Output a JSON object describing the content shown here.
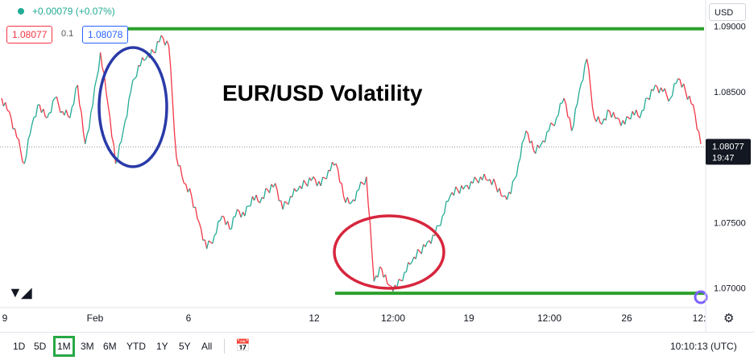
{
  "header": {
    "change_text": "+0.00079 (+0.07%)",
    "bid_price": "1.08077",
    "spread": "0.1",
    "ask_price": "1.08078",
    "currency": "USD"
  },
  "annotation_title": "EUR/USD Volatility",
  "price_label": {
    "value": "1.08077",
    "countdown": "19:47"
  },
  "toolbar": {
    "ranges": [
      "1D",
      "5D",
      "1M",
      "3M",
      "6M",
      "YTD",
      "1Y",
      "5Y",
      "All"
    ],
    "active_range": "1M",
    "clock": "10:10:13 (UTC)"
  },
  "colors": {
    "up": "#22ab94",
    "down": "#f23645",
    "support_resistance": "#2ca02c",
    "ellipse_top": "#2a3aa8",
    "ellipse_bottom": "#d7263d",
    "price_label_bg": "#131722"
  },
  "chart_data": {
    "type": "line",
    "title": "EUR/USD Volatility",
    "series": [
      {
        "values": [
          1.0845,
          1.0835,
          1.0815,
          1.0795,
          1.0825,
          1.084,
          1.083,
          1.0845,
          1.0835,
          1.083,
          1.0855,
          1.081,
          1.084,
          1.088,
          1.084,
          1.0795,
          1.082,
          1.085,
          1.087,
          1.0875,
          1.088,
          1.0893,
          1.0885,
          1.08,
          1.078,
          1.077,
          1.075,
          1.073,
          1.074,
          1.0755,
          1.0745,
          1.076,
          1.0755,
          1.077,
          1.0765,
          1.0775,
          1.078,
          1.076,
          1.077,
          1.0775,
          1.078,
          1.0785,
          1.0778,
          1.079,
          1.0795,
          1.077,
          1.0765,
          1.0775,
          1.0785,
          1.0705,
          1.0715,
          1.0702,
          1.07,
          1.0712,
          1.072,
          1.0728,
          1.0735,
          1.074,
          1.0755,
          1.077,
          1.0775,
          1.0778,
          1.078,
          1.0785,
          1.0782,
          1.0779,
          1.077,
          1.0772,
          1.0795,
          1.082,
          1.0805,
          1.081,
          1.082,
          1.083,
          1.0845,
          1.082,
          1.085,
          1.0875,
          1.083,
          1.0825,
          1.0835,
          1.083,
          1.0825,
          1.0835,
          1.083,
          1.0845,
          1.0855,
          1.085,
          1.0845,
          1.086,
          1.085,
          1.084,
          1.081
        ]
      }
    ],
    "y_axis": {
      "ticks": [
        "1.09000",
        "1.08500",
        "1.08000",
        "1.07500",
        "1.07000"
      ],
      "ylim": [
        1.0685,
        1.092
      ]
    },
    "x_axis": {
      "ticks": [
        "9",
        "Feb",
        "6",
        "12",
        "12:00",
        "19",
        "12:00",
        "26",
        "12:"
      ]
    },
    "levels": {
      "resistance": 1.0898,
      "support": 1.0696
    },
    "grid": false
  }
}
